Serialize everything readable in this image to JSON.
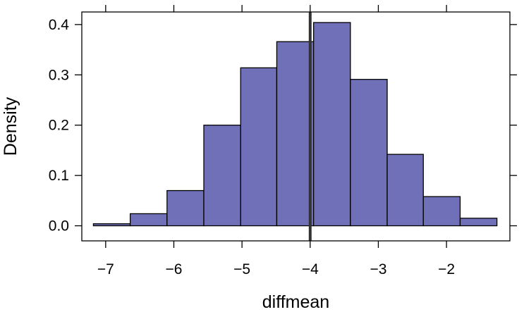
{
  "chart_data": {
    "type": "histogram",
    "xlabel": "diffmean",
    "ylabel": "Density",
    "xlim": [
      -7.35,
      -1.07
    ],
    "ylim": [
      -0.03,
      0.425
    ],
    "x_ticks": [
      -7,
      -6,
      -5,
      -4,
      -3,
      -2
    ],
    "x_tick_labels": [
      "−7",
      "−6",
      "−5",
      "−4",
      "−3",
      "−2"
    ],
    "y_ticks": [
      0.0,
      0.1,
      0.2,
      0.3,
      0.4
    ],
    "y_tick_labels": [
      "0.0",
      "0.1",
      "0.2",
      "0.3",
      "0.4"
    ],
    "bins": [
      {
        "x0": -7.18,
        "x1": -6.64,
        "density": 0.004
      },
      {
        "x0": -6.64,
        "x1": -6.1,
        "density": 0.024
      },
      {
        "x0": -6.1,
        "x1": -5.56,
        "density": 0.07
      },
      {
        "x0": -5.56,
        "x1": -5.02,
        "density": 0.2
      },
      {
        "x0": -5.02,
        "x1": -4.49,
        "density": 0.314
      },
      {
        "x0": -4.49,
        "x1": -3.95,
        "density": 0.366
      },
      {
        "x0": -3.95,
        "x1": -3.41,
        "density": 0.404
      },
      {
        "x0": -3.41,
        "x1": -2.87,
        "density": 0.291
      },
      {
        "x0": -2.87,
        "x1": -2.34,
        "density": 0.142
      },
      {
        "x0": -2.34,
        "x1": -1.8,
        "density": 0.058
      },
      {
        "x0": -1.8,
        "x1": -1.26,
        "density": 0.015
      }
    ],
    "reference_line_x": -4.0,
    "grid": false,
    "colors": {
      "bar_fill": "#7070b8",
      "bar_stroke": "#000000",
      "reference_line": "#333333"
    }
  }
}
